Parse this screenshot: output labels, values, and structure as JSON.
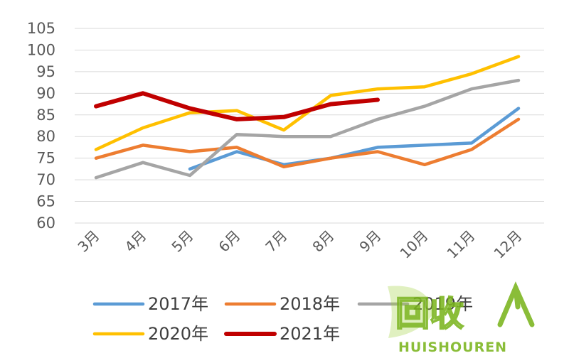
{
  "chart_data": {
    "type": "line",
    "categories": [
      "3月",
      "4月",
      "5月",
      "6月",
      "7月",
      "8月",
      "9月",
      "10月",
      "11月",
      "12月"
    ],
    "ylim": [
      60,
      105
    ],
    "yticks": [
      60,
      65,
      70,
      75,
      80,
      85,
      90,
      95,
      100,
      105
    ],
    "grid": true,
    "legend_position": "bottom",
    "series": [
      {
        "name": "2017年",
        "color": "#5b9bd5",
        "values": [
          null,
          null,
          72.5,
          76.5,
          73.5,
          75,
          77.5,
          78,
          78.5,
          86.5
        ]
      },
      {
        "name": "2018年",
        "color": "#ed7d31",
        "values": [
          75,
          78,
          76.5,
          77.5,
          73,
          75,
          76.5,
          73.5,
          77,
          84
        ]
      },
      {
        "name": "2019年",
        "color": "#a5a5a5",
        "values": [
          70.5,
          74,
          71,
          80.5,
          80,
          80,
          84,
          87,
          91,
          93
        ]
      },
      {
        "name": "2020年",
        "color": "#ffc000",
        "values": [
          77,
          82,
          85.5,
          86,
          81.5,
          89.5,
          91,
          91.5,
          94.5,
          98.5
        ]
      },
      {
        "name": "2021年",
        "color": "#c00000",
        "values": [
          87,
          90,
          86.5,
          84,
          84.5,
          87.5,
          88.5,
          null,
          null,
          null
        ]
      }
    ]
  },
  "watermark": {
    "logo_text": "回收",
    "brand_text": "HUISHOUREN"
  }
}
